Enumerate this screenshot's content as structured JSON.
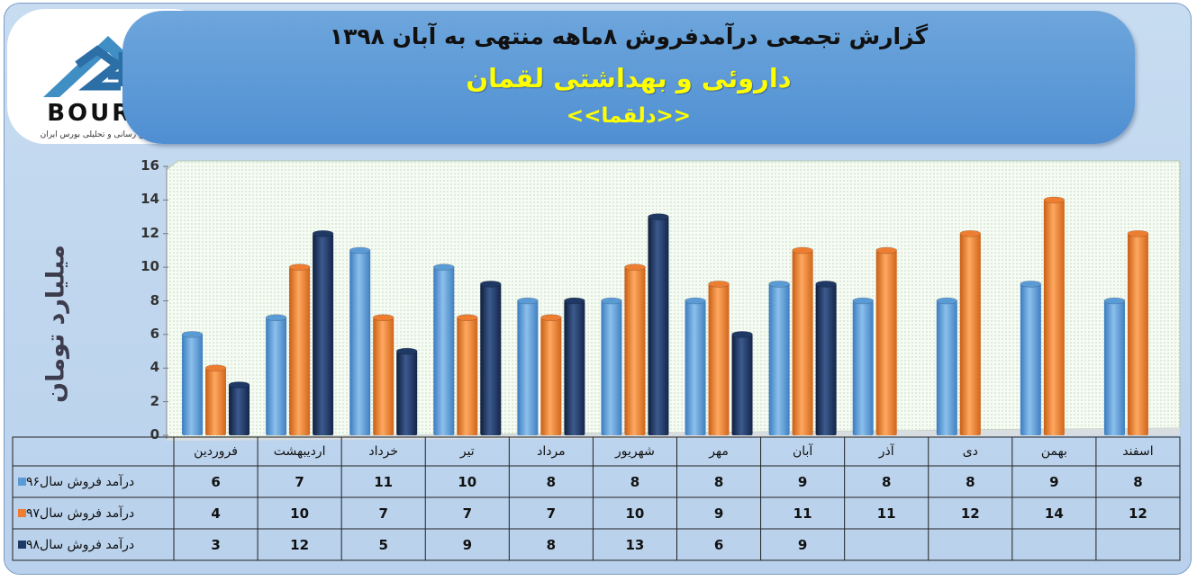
{
  "header": {
    "title_line1": "گزارش تجمعی درآمدفروش ۸ماهه منتهی به آبان ۱۳۹۸",
    "title_line2": "داروئی و بهداشتی لقمان",
    "title_line3": "<<دلقما>>"
  },
  "logo": {
    "text": "BOURSE",
    "subtitle": "پایگاه اطلاع رسانی و تحلیلی بورس ایران"
  },
  "colors": {
    "series96": "#5b9bd5",
    "series97": "#ed7d31",
    "series98": "#1f3864",
    "banner": "#5b97d6",
    "title_highlight": "#ffff00"
  },
  "chart_data": {
    "type": "bar",
    "ylabel": "میلیارد تومان",
    "ylim": [
      0,
      16
    ],
    "yticks": [
      0,
      2,
      4,
      6,
      8,
      10,
      12,
      14,
      16
    ],
    "categories": [
      "فروردین",
      "اردیبهشت",
      "خرداد",
      "تیر",
      "مرداد",
      "شهریور",
      "مهر",
      "آبان",
      "آذر",
      "دی",
      "بهمن",
      "اسفند"
    ],
    "series": [
      {
        "name": "درآمد فروش سال۹۶",
        "values": [
          6,
          7,
          11,
          10,
          8,
          8,
          8,
          9,
          8,
          8,
          9,
          8
        ]
      },
      {
        "name": "درآمد فروش سال۹۷",
        "values": [
          4,
          10,
          7,
          7,
          7,
          10,
          9,
          11,
          11,
          12,
          14,
          12
        ]
      },
      {
        "name": "درآمد فروش سال۹۸",
        "values": [
          3,
          12,
          5,
          9,
          8,
          13,
          6,
          9,
          null,
          null,
          null,
          null
        ]
      }
    ],
    "grid": false,
    "legend": "data-table"
  }
}
